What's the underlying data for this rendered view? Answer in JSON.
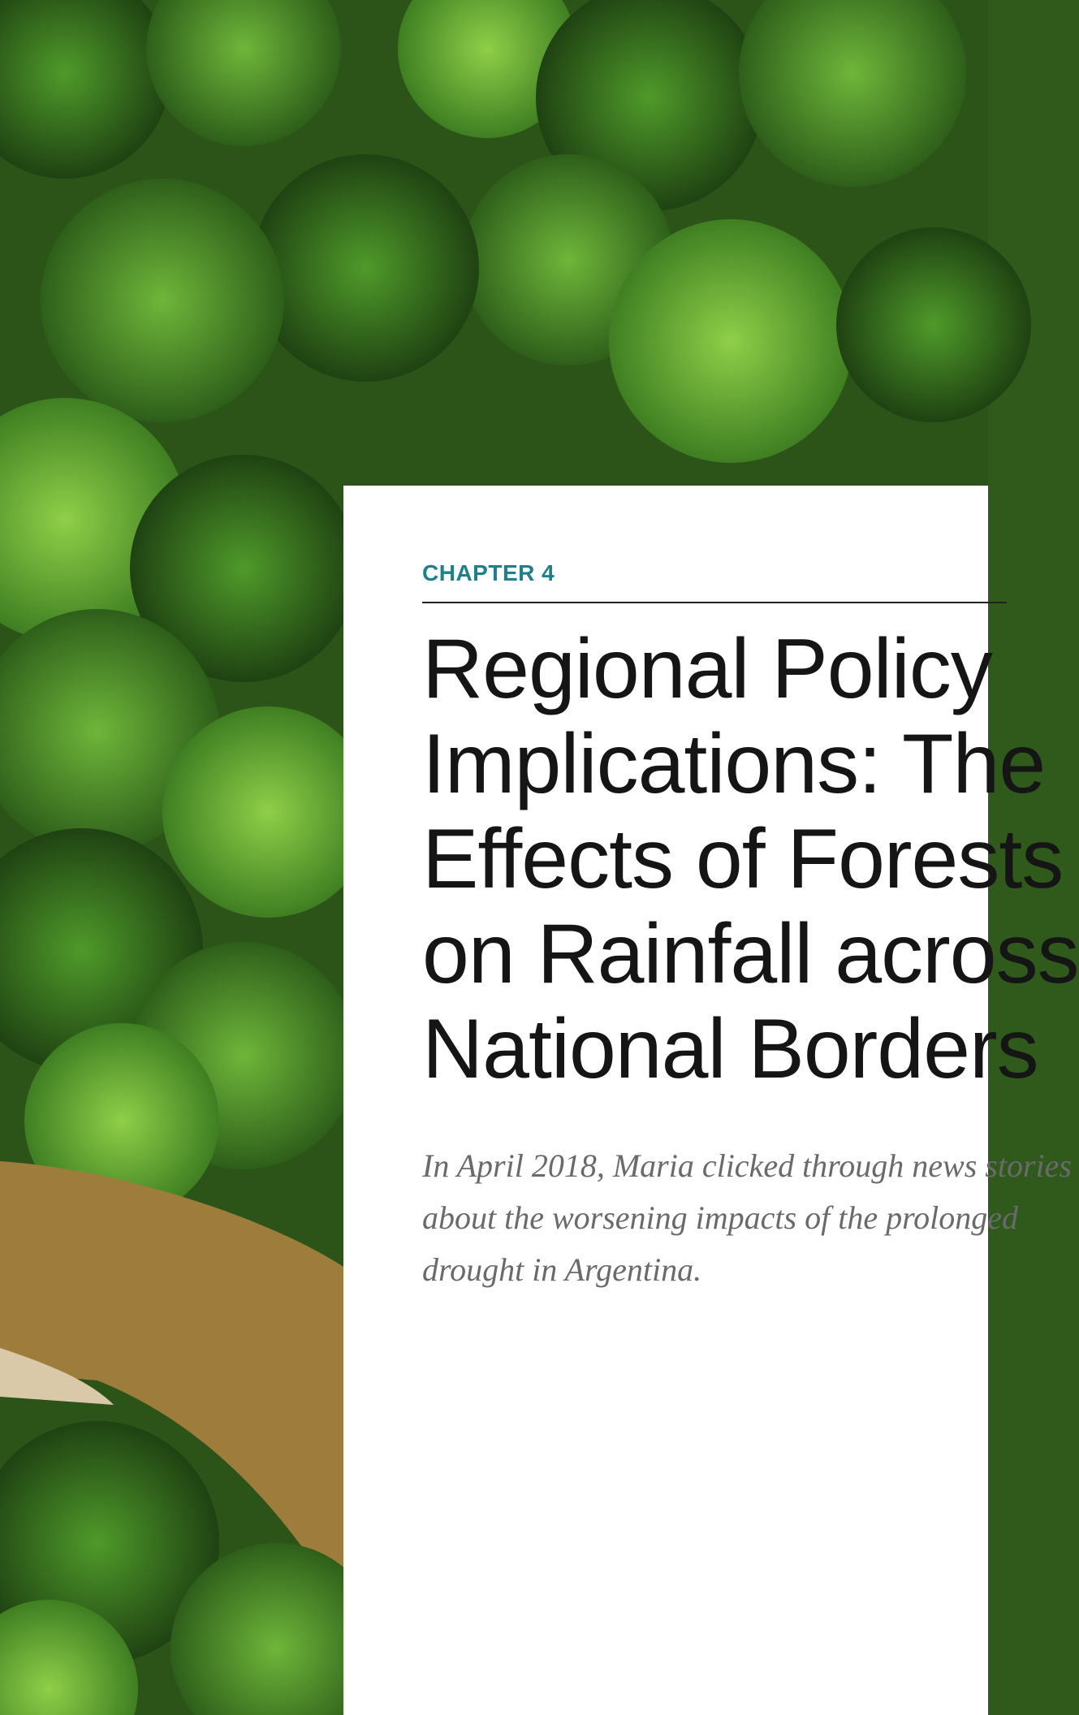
{
  "chapter": "CHAPTER 4",
  "title_lines": [
    "Regional Policy",
    "Implications: The",
    "Effects of Forests",
    "on Rainfall across",
    "National Borders"
  ],
  "intro_lines": [
    "In April 2018, Maria clicked through news stories",
    "about the worsening impacts of the prolonged",
    "drought in Argentina."
  ]
}
